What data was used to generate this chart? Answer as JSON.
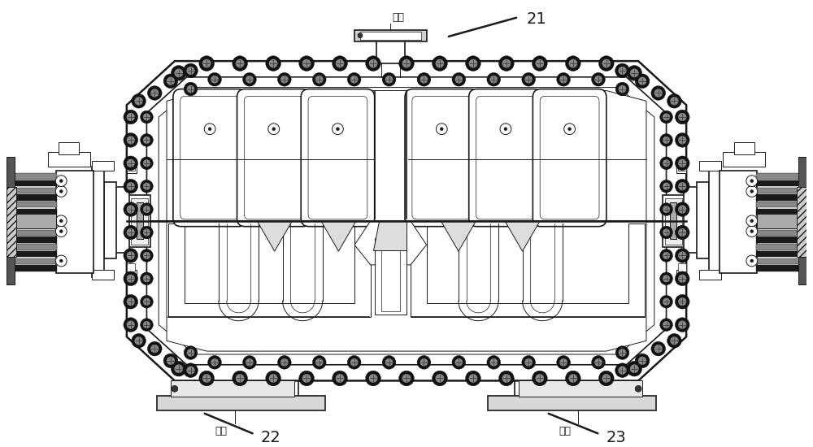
{
  "background_color": "#ffffff",
  "line_color": "#1a1a1a",
  "label_21": "21",
  "label_22": "22",
  "label_23": "23",
  "text_outlet": "出口",
  "text_inlet_left": "进口",
  "text_inlet_right": "进口",
  "figsize": [
    10.0,
    5.5
  ],
  "dpi": 100
}
